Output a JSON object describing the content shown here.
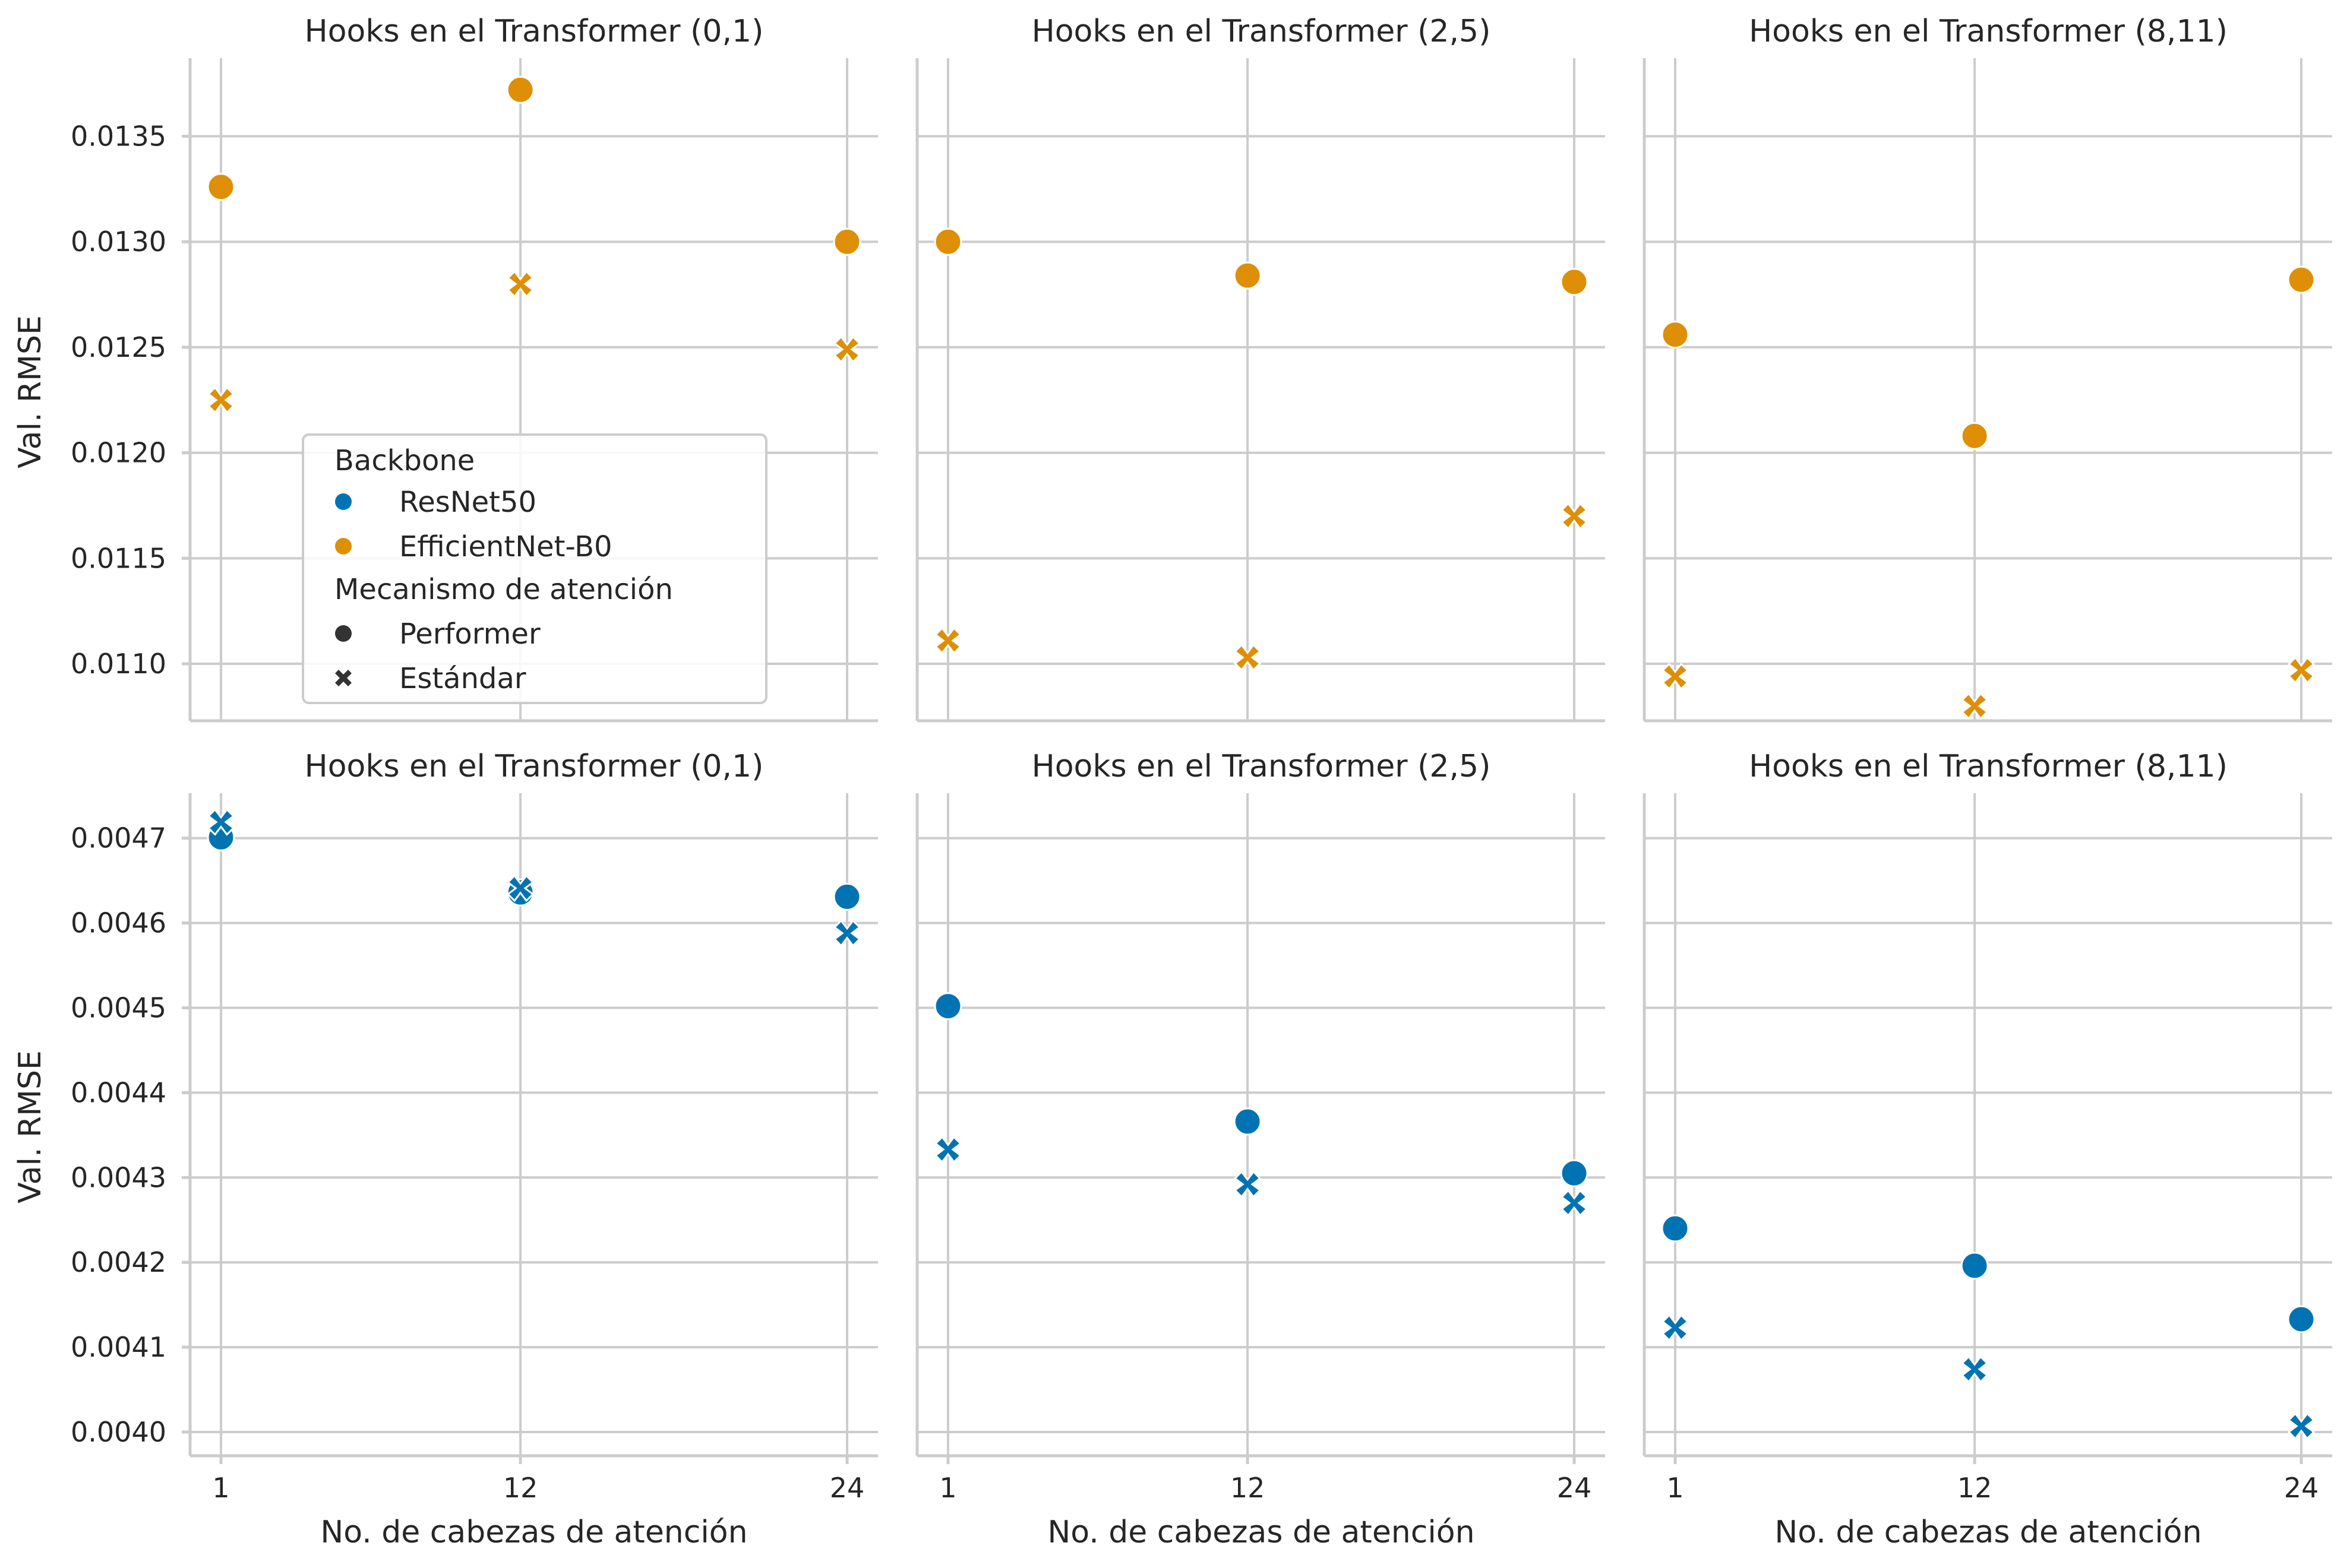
{
  "colors": {
    "resnet": "#0173b2",
    "efficientnet": "#de8f05",
    "grid": "#cccccc",
    "text": "#262626"
  },
  "chart_data": {
    "type": "scatter",
    "x_ticks": [
      1,
      12,
      24
    ],
    "xlabel": "No. de cabezas de atención",
    "ylabel": "Val. RMSE",
    "legend": {
      "position": "inside-top-left",
      "hue_title": "Backbone",
      "hue_entries": [
        {
          "label": "ResNet50",
          "color": "#0173b2"
        },
        {
          "label": "EfficientNet-B0",
          "color": "#de8f05"
        }
      ],
      "style_title": "Mecanismo de atención",
      "style_entries": [
        {
          "label": "Performer",
          "marker": "circle"
        },
        {
          "label": "Estándar",
          "marker": "x"
        }
      ]
    },
    "rows": [
      {
        "backbone": "EfficientNet-B0",
        "color": "#de8f05",
        "ylim": [
          0.01073,
          0.01387
        ],
        "y_ticks": [
          0.011,
          0.0115,
          0.012,
          0.0125,
          0.013,
          0.0135
        ],
        "y_tick_labels": [
          "0.0110",
          "0.0115",
          "0.0120",
          "0.0125",
          "0.0130",
          "0.0135"
        ],
        "panels": [
          {
            "title": "Hooks en el Transformer (0,1)",
            "performer": [
              0.01326,
              0.01372,
              0.013
            ],
            "estandar": [
              0.01225,
              0.0128,
              0.01249
            ]
          },
          {
            "title": "Hooks en el Transformer (2,5)",
            "performer": [
              0.013,
              0.01284,
              0.01281
            ],
            "estandar": [
              0.01111,
              0.01103,
              0.0117
            ]
          },
          {
            "title": "Hooks en el Transformer (8,11)",
            "performer": [
              0.01256,
              0.01208,
              0.01282
            ],
            "estandar": [
              0.01094,
              0.0108,
              0.01097
            ]
          }
        ]
      },
      {
        "backbone": "ResNet50",
        "color": "#0173b2",
        "ylim": [
          0.003972,
          0.004753
        ],
        "y_ticks": [
          0.004,
          0.0041,
          0.0042,
          0.0043,
          0.0044,
          0.0045,
          0.0046,
          0.0047
        ],
        "y_tick_labels": [
          "0.0040",
          "0.0041",
          "0.0042",
          "0.0043",
          "0.0044",
          "0.0045",
          "0.0046",
          "0.0047"
        ],
        "panels": [
          {
            "title": "Hooks en el Transformer (0,1)",
            "performer": [
              0.004701,
              0.004636,
              0.004631
            ],
            "estandar": [
              0.004719,
              0.004641,
              0.004588
            ]
          },
          {
            "title": "Hooks en el Transformer (2,5)",
            "performer": [
              0.004502,
              0.004366,
              0.004305
            ],
            "estandar": [
              0.004333,
              0.004292,
              0.00427
            ]
          },
          {
            "title": "Hooks en el Transformer (8,11)",
            "performer": [
              0.00424,
              0.004196,
              0.004133
            ],
            "estandar": [
              0.004123,
              0.004074,
              0.004007
            ]
          }
        ]
      }
    ]
  }
}
